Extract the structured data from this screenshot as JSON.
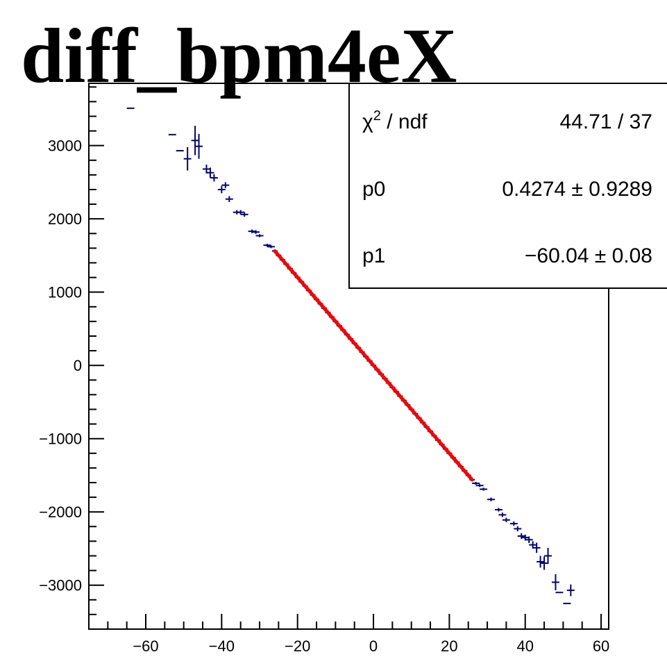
{
  "chart_data": {
    "type": "scatter",
    "title": "diff_bpm4eX",
    "xlabel": "",
    "ylabel": "",
    "xlim": [
      -75,
      62
    ],
    "ylim": [
      -3600,
      3850
    ],
    "x_ticks": [
      -60,
      -40,
      -20,
      0,
      20,
      40,
      60
    ],
    "y_ticks": [
      -3000,
      -2000,
      -1000,
      0,
      1000,
      2000,
      3000
    ],
    "x_tick_labels": [
      "−60",
      "−40",
      "−20",
      "0",
      "20",
      "40",
      "60"
    ],
    "y_tick_labels": [
      "−3000",
      "−2000",
      "−1000",
      "0",
      "1000",
      "2000",
      "3000"
    ],
    "marker_color": "#000080",
    "fit_color": "#ff0000",
    "series": [
      {
        "points": [
          {
            "x": -64,
            "y": 3510,
            "ex": 1.0,
            "ey": 0
          },
          {
            "x": -53,
            "y": 3150,
            "ex": 1.0,
            "ey": 0
          },
          {
            "x": -51,
            "y": 2930,
            "ex": 1.0,
            "ey": 0
          },
          {
            "x": -49,
            "y": 2820,
            "ex": 1.0,
            "ey": 160
          },
          {
            "x": -47,
            "y": 3070,
            "ex": 1.0,
            "ey": 200
          },
          {
            "x": -46,
            "y": 2990,
            "ex": 1.0,
            "ey": 170
          },
          {
            "x": -44,
            "y": 2680,
            "ex": 1.0,
            "ey": 60
          },
          {
            "x": -43,
            "y": 2630,
            "ex": 1.0,
            "ey": 70
          },
          {
            "x": -42,
            "y": 2560,
            "ex": 1.0,
            "ey": 50
          },
          {
            "x": -40,
            "y": 2400,
            "ex": 1.0,
            "ey": 50
          },
          {
            "x": -39,
            "y": 2460,
            "ex": 1.0,
            "ey": 40
          },
          {
            "x": -38,
            "y": 2270,
            "ex": 1.0,
            "ey": 40
          },
          {
            "x": -36,
            "y": 2090,
            "ex": 1.0,
            "ey": 30
          },
          {
            "x": -35,
            "y": 2090,
            "ex": 1.0,
            "ey": 30
          },
          {
            "x": -34,
            "y": 2060,
            "ex": 1.0,
            "ey": 30
          },
          {
            "x": -32,
            "y": 1830,
            "ex": 1.0,
            "ey": 25
          },
          {
            "x": -31,
            "y": 1820,
            "ex": 1.0,
            "ey": 25
          },
          {
            "x": -30,
            "y": 1770,
            "ex": 1.0,
            "ey": 20
          },
          {
            "x": -28,
            "y": 1640,
            "ex": 1.0,
            "ey": 20
          },
          {
            "x": -27,
            "y": 1620,
            "ex": 1.0,
            "ey": 20
          },
          {
            "x": 27,
            "y": -1610,
            "ex": 1.0,
            "ey": 20
          },
          {
            "x": 28,
            "y": -1640,
            "ex": 1.0,
            "ey": 20
          },
          {
            "x": 29,
            "y": -1690,
            "ex": 1.0,
            "ey": 20
          },
          {
            "x": 31,
            "y": -1830,
            "ex": 1.0,
            "ey": 25
          },
          {
            "x": 33,
            "y": -1970,
            "ex": 1.0,
            "ey": 25
          },
          {
            "x": 34,
            "y": -2040,
            "ex": 1.0,
            "ey": 30
          },
          {
            "x": 35,
            "y": -2110,
            "ex": 1.0,
            "ey": 30
          },
          {
            "x": 37,
            "y": -2160,
            "ex": 1.0,
            "ey": 30
          },
          {
            "x": 38,
            "y": -2230,
            "ex": 1.0,
            "ey": 35
          },
          {
            "x": 39,
            "y": -2330,
            "ex": 1.0,
            "ey": 40
          },
          {
            "x": 40,
            "y": -2350,
            "ex": 1.0,
            "ey": 40
          },
          {
            "x": 41,
            "y": -2380,
            "ex": 1.0,
            "ey": 45
          },
          {
            "x": 42,
            "y": -2450,
            "ex": 1.0,
            "ey": 50
          },
          {
            "x": 43,
            "y": -2490,
            "ex": 1.0,
            "ey": 70
          },
          {
            "x": 44,
            "y": -2680,
            "ex": 1.0,
            "ey": 80
          },
          {
            "x": 45,
            "y": -2700,
            "ex": 1.0,
            "ey": 90
          },
          {
            "x": 46,
            "y": -2600,
            "ex": 1.0,
            "ey": 110
          },
          {
            "x": 48,
            "y": -2960,
            "ex": 1.0,
            "ey": 110
          },
          {
            "x": 49,
            "y": -3100,
            "ex": 1.0,
            "ey": 0
          },
          {
            "x": 51,
            "y": -3250,
            "ex": 1.0,
            "ey": 0
          },
          {
            "x": 52,
            "y": -3070,
            "ex": 1.0,
            "ey": 80
          }
        ]
      }
    ],
    "fit": {
      "type": "line",
      "x_range": [
        -26,
        26
      ],
      "p0": 0.4274,
      "p1": -60.04
    },
    "stats_box": {
      "rows": [
        {
          "label_main": "χ",
          "label_sup": "2",
          "label_rest": " / ndf",
          "value": "44.71 / 37"
        },
        {
          "label_main": "p0",
          "label_sup": "",
          "label_rest": "",
          "value": "0.4274  ± 0.9289"
        },
        {
          "label_main": "p1",
          "label_sup": "",
          "label_rest": "",
          "value": "−60.04  ± 0.08"
        }
      ]
    }
  }
}
